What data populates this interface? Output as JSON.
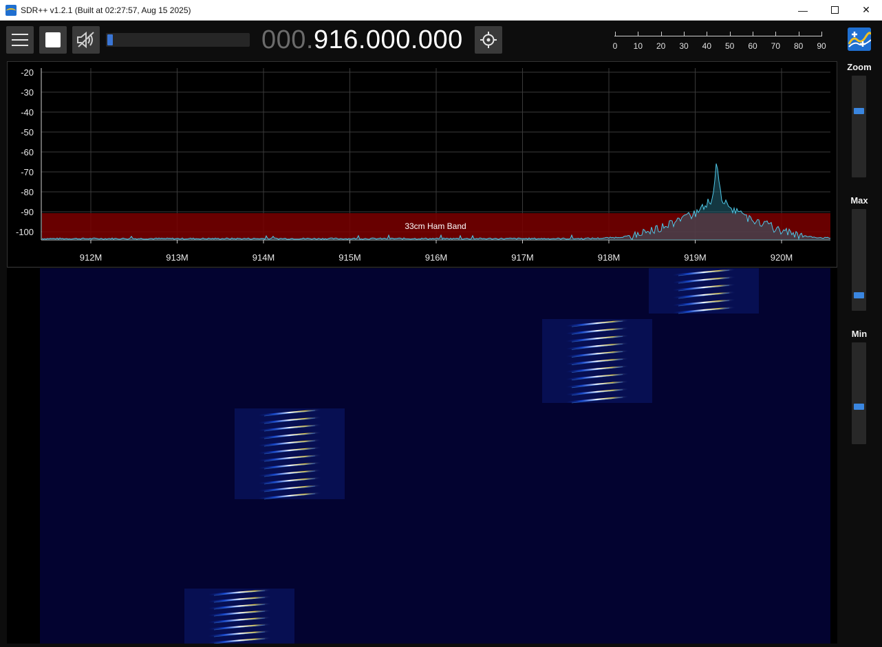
{
  "window": {
    "title": "SDR++ v1.2.1 (Built at 02:27:57, Aug 15 2025)",
    "minimize_glyph": "—",
    "close_glyph": "✕"
  },
  "toolbar": {
    "frequency_dim": "000.",
    "frequency_bright": "916.000.000",
    "volume_level": 0.04,
    "snr_ticks": [
      "0",
      "10",
      "20",
      "30",
      "40",
      "50",
      "60",
      "70",
      "80",
      "90"
    ],
    "icons": [
      "menu-icon",
      "stop-icon",
      "speaker-muted-icon",
      "crosshair-icon",
      "sdrpp-logo-icon"
    ]
  },
  "spectrum": {
    "db_labels": [
      "-20",
      "-30",
      "-40",
      "-50",
      "-60",
      "-70",
      "-80",
      "-90",
      "-100"
    ],
    "freq_labels": [
      "912M",
      "913M",
      "914M",
      "915M",
      "916M",
      "917M",
      "918M",
      "919M",
      "920M"
    ],
    "band_label": "33cm Ham Band",
    "band_color": "#7a0000",
    "trace_color": "#4fc8e8"
  },
  "side": {
    "zoom_label": "Zoom",
    "max_label": "Max",
    "min_label": "Min",
    "zoom_value": 0.66,
    "max_value": 0.87,
    "min_value": 0.36
  }
}
